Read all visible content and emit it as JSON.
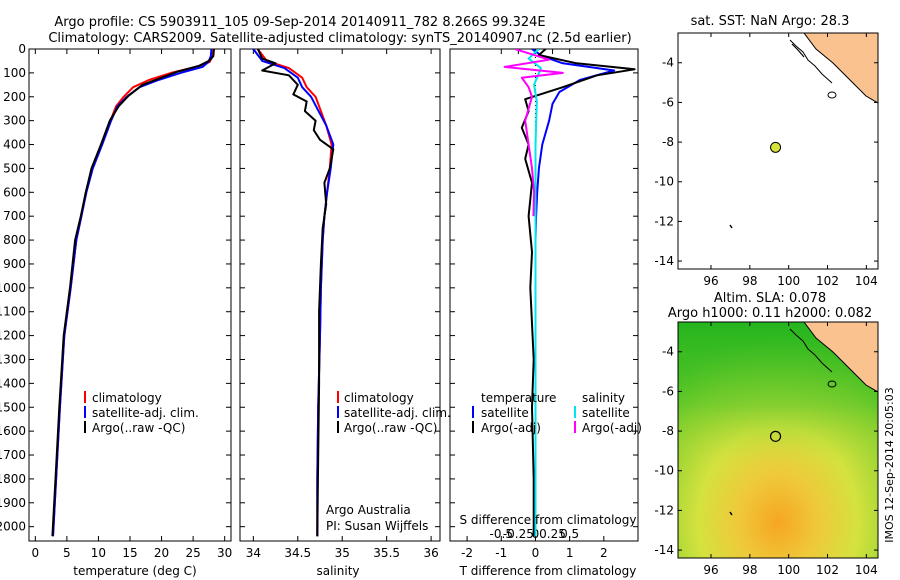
{
  "header": {
    "title_line1": "Argo profile: CS 5903911_105 09-Sep-2014 20140911_782 8.266S 99.324E",
    "title_line2": "Climatology: CARS2009. Satellite-adjusted climatology: synTS_20140907.nc (2.5d earlier)"
  },
  "colors": {
    "climatology": "#ff0000",
    "satellite": "#0000ff",
    "argo": "#000000",
    "salinity_satellite": "#00e5ee",
    "salinity_argo_adj": "#ff00ff",
    "land": "#f9c28f",
    "argo_marker": "#d6e33a"
  },
  "watermark": "IMOS 12-Sep-2014 20:05:03",
  "chart_data": [
    {
      "id": "temperature",
      "type": "line",
      "xlabel": "temperature (deg C)",
      "ylabel": "",
      "xlim": [
        -1,
        31
      ],
      "ylim": [
        2060,
        0
      ],
      "xticks": [
        0,
        5,
        10,
        15,
        20,
        25,
        30
      ],
      "yticks": [
        0,
        100,
        200,
        300,
        400,
        500,
        600,
        700,
        800,
        900,
        1000,
        1100,
        1200,
        1300,
        1400,
        1500,
        1600,
        1700,
        1800,
        1900,
        2000
      ],
      "legend": [
        "climatology",
        "satellite-adj. clim.",
        "Argo(..raw -QC)"
      ],
      "series": [
        {
          "name": "climatology",
          "color": "#ff0000",
          "x": [
            28.2,
            28.1,
            27.6,
            25.5,
            21.5,
            18.0,
            15.5,
            14.0,
            12.8,
            11.9,
            10.5,
            9.0,
            8.0,
            7.3,
            6.5,
            5.6,
            4.6,
            3.9,
            3.3,
            2.8
          ],
          "y": [
            0,
            30,
            55,
            75,
            100,
            130,
            160,
            200,
            240,
            300,
            400,
            500,
            600,
            700,
            800,
            1000,
            1200,
            1500,
            1800,
            2040
          ]
        },
        {
          "name": "satellite-adj. clim.",
          "color": "#0000ff",
          "x": [
            27.9,
            27.8,
            27.4,
            26.5,
            23.0,
            19.5,
            16.5,
            14.5,
            13.0,
            12.0,
            10.6,
            9.1,
            8.1,
            7.3,
            6.5,
            5.6,
            4.6,
            3.9,
            3.3,
            2.8
          ],
          "y": [
            0,
            30,
            55,
            75,
            100,
            130,
            160,
            200,
            240,
            300,
            400,
            500,
            600,
            700,
            800,
            1000,
            1200,
            1500,
            1800,
            2040
          ]
        },
        {
          "name": "Argo(..raw -QC)",
          "color": "#000000",
          "x": [
            28.3,
            28.2,
            27.5,
            26.0,
            22.5,
            20.0,
            17.0,
            14.8,
            13.2,
            11.8,
            10.4,
            8.9,
            8.0,
            7.2,
            6.3,
            5.5,
            4.5,
            3.8,
            3.2,
            2.7
          ],
          "y": [
            0,
            30,
            50,
            70,
            95,
            120,
            150,
            195,
            240,
            300,
            400,
            500,
            600,
            700,
            800,
            1000,
            1200,
            1500,
            1800,
            2040
          ]
        }
      ]
    },
    {
      "id": "salinity",
      "type": "line",
      "xlabel": "salinity",
      "xlim": [
        33.85,
        36.1
      ],
      "ylim": [
        2060,
        0
      ],
      "xticks": [
        34,
        34.5,
        35,
        35.5,
        36
      ],
      "legend": [
        "climatology",
        "satellite-adj. clim.",
        "Argo(..raw -QC)"
      ],
      "annotation_line1": "Argo Australia",
      "annotation_line2": "PI: Susan Wijffels",
      "series": [
        {
          "name": "climatology",
          "color": "#ff0000",
          "x": [
            34.05,
            34.15,
            34.4,
            34.55,
            34.6,
            34.7,
            34.75,
            34.82,
            34.88,
            34.86,
            34.83,
            34.8,
            34.78,
            34.76,
            34.75,
            34.73,
            34.72,
            34.72
          ],
          "y": [
            0,
            50,
            80,
            120,
            160,
            200,
            250,
            320,
            400,
            500,
            600,
            700,
            800,
            1000,
            1200,
            1500,
            1800,
            2040
          ]
        },
        {
          "name": "satellite-adj. clim.",
          "color": "#0000ff",
          "x": [
            34.0,
            34.1,
            34.35,
            34.5,
            34.55,
            34.65,
            34.72,
            34.82,
            34.9,
            34.87,
            34.83,
            34.8,
            34.78,
            34.76,
            34.75,
            34.73,
            34.72,
            34.72
          ],
          "y": [
            0,
            50,
            80,
            120,
            160,
            200,
            250,
            320,
            400,
            500,
            600,
            700,
            800,
            1000,
            1200,
            1500,
            1800,
            2040
          ]
        },
        {
          "name": "Argo(..raw -QC)",
          "color": "#000000",
          "x": [
            34.05,
            34.1,
            34.25,
            34.1,
            34.4,
            34.5,
            34.45,
            34.6,
            34.58,
            34.7,
            34.68,
            34.75,
            34.9,
            34.86,
            34.8,
            34.82,
            34.78,
            34.76,
            34.74,
            34.74,
            34.73,
            34.72
          ],
          "y": [
            0,
            40,
            60,
            90,
            110,
            150,
            190,
            220,
            260,
            300,
            340,
            380,
            420,
            500,
            560,
            650,
            750,
            900,
            1100,
            1400,
            1700,
            2040
          ]
        }
      ]
    },
    {
      "id": "difference",
      "type": "line",
      "xlabel": "T difference from climatology",
      "top_label": "S difference from climatology",
      "xlim": [
        -2.5,
        3
      ],
      "ylim": [
        2060,
        0
      ],
      "xticks": [
        -2,
        -1,
        0,
        1,
        2
      ],
      "s_ticks": [
        "-0.5",
        "-0.25",
        "0",
        "0.25",
        "0.5"
      ],
      "s_tick_values": [
        -0.5,
        -0.25,
        0,
        0.25,
        0.5
      ],
      "legend_header_left": "temperature",
      "legend_header_right": "salinity",
      "legend": [
        "satellite",
        "Argo(-adj)",
        "satellite",
        "Argo(-adj)"
      ],
      "series": [
        {
          "name": "satellite",
          "color": "#0000ff",
          "x": [
            -0.1,
            0.2,
            0.8,
            2.3,
            1.3,
            0.7,
            0.5,
            0.4,
            0.2,
            0.1,
            0.05,
            0.02,
            0.0,
            0.0,
            0.0,
            0.0,
            0.0,
            0.0
          ],
          "y": [
            0,
            30,
            60,
            90,
            130,
            180,
            230,
            300,
            400,
            500,
            600,
            700,
            800,
            1000,
            1200,
            1500,
            1800,
            2040
          ]
        },
        {
          "name": "Argo(-adj)",
          "color": "#000000",
          "x": [
            0.3,
            0.1,
            1.2,
            2.9,
            1.8,
            0.8,
            -0.3,
            -0.2,
            -0.4,
            -0.2,
            -0.3,
            -0.1,
            -0.2,
            -0.1,
            -0.15,
            -0.05,
            -0.1,
            -0.05,
            -0.05
          ],
          "y": [
            0,
            25,
            60,
            85,
            110,
            160,
            210,
            260,
            330,
            400,
            460,
            560,
            700,
            850,
            1000,
            1300,
            1500,
            1800,
            2040
          ]
        },
        {
          "name": "satellite",
          "color": "#00e5ee",
          "axis": "S",
          "x": [
            0.05,
            -0.1,
            0.08,
            -0.02,
            0.02,
            0.0,
            0.0,
            0.0,
            0.0,
            0.0
          ],
          "y": [
            0,
            40,
            80,
            150,
            220,
            400,
            800,
            1200,
            1600,
            2040
          ]
        },
        {
          "name": "Argo(-adj)",
          "color": "#ff00ff",
          "axis": "S",
          "x": [
            -0.3,
            0.2,
            -0.45,
            0.4,
            -0.2,
            -0.1,
            -0.05,
            -0.15,
            -0.1,
            -0.05,
            -0.02,
            -0.03
          ],
          "y": [
            0,
            45,
            75,
            100,
            120,
            160,
            200,
            300,
            400,
            500,
            600,
            700
          ]
        }
      ]
    },
    {
      "id": "sst_map",
      "type": "scatter",
      "title": "sat. SST: NaN Argo: 28.3",
      "xlim": [
        94.3,
        104.6
      ],
      "ylim": [
        -14.4,
        -2.5
      ],
      "xticks": [
        96,
        98,
        100,
        102,
        104
      ],
      "yticks": [
        -4,
        -6,
        -8,
        -10,
        -12,
        -14
      ],
      "argo_position": [
        99.324,
        -8.266
      ]
    },
    {
      "id": "sla_map",
      "type": "heatmap",
      "title_line1": "Altim. SLA: 0.078",
      "title_line2": "Argo h1000: 0.11 h2000: 0.082",
      "xlim": [
        94.3,
        104.6
      ],
      "ylim": [
        -14.4,
        -2.5
      ],
      "xticks": [
        96,
        98,
        100,
        102,
        104
      ],
      "yticks": [
        -4,
        -6,
        -8,
        -10,
        -12,
        -14
      ],
      "argo_position": [
        99.324,
        -8.266
      ]
    }
  ]
}
